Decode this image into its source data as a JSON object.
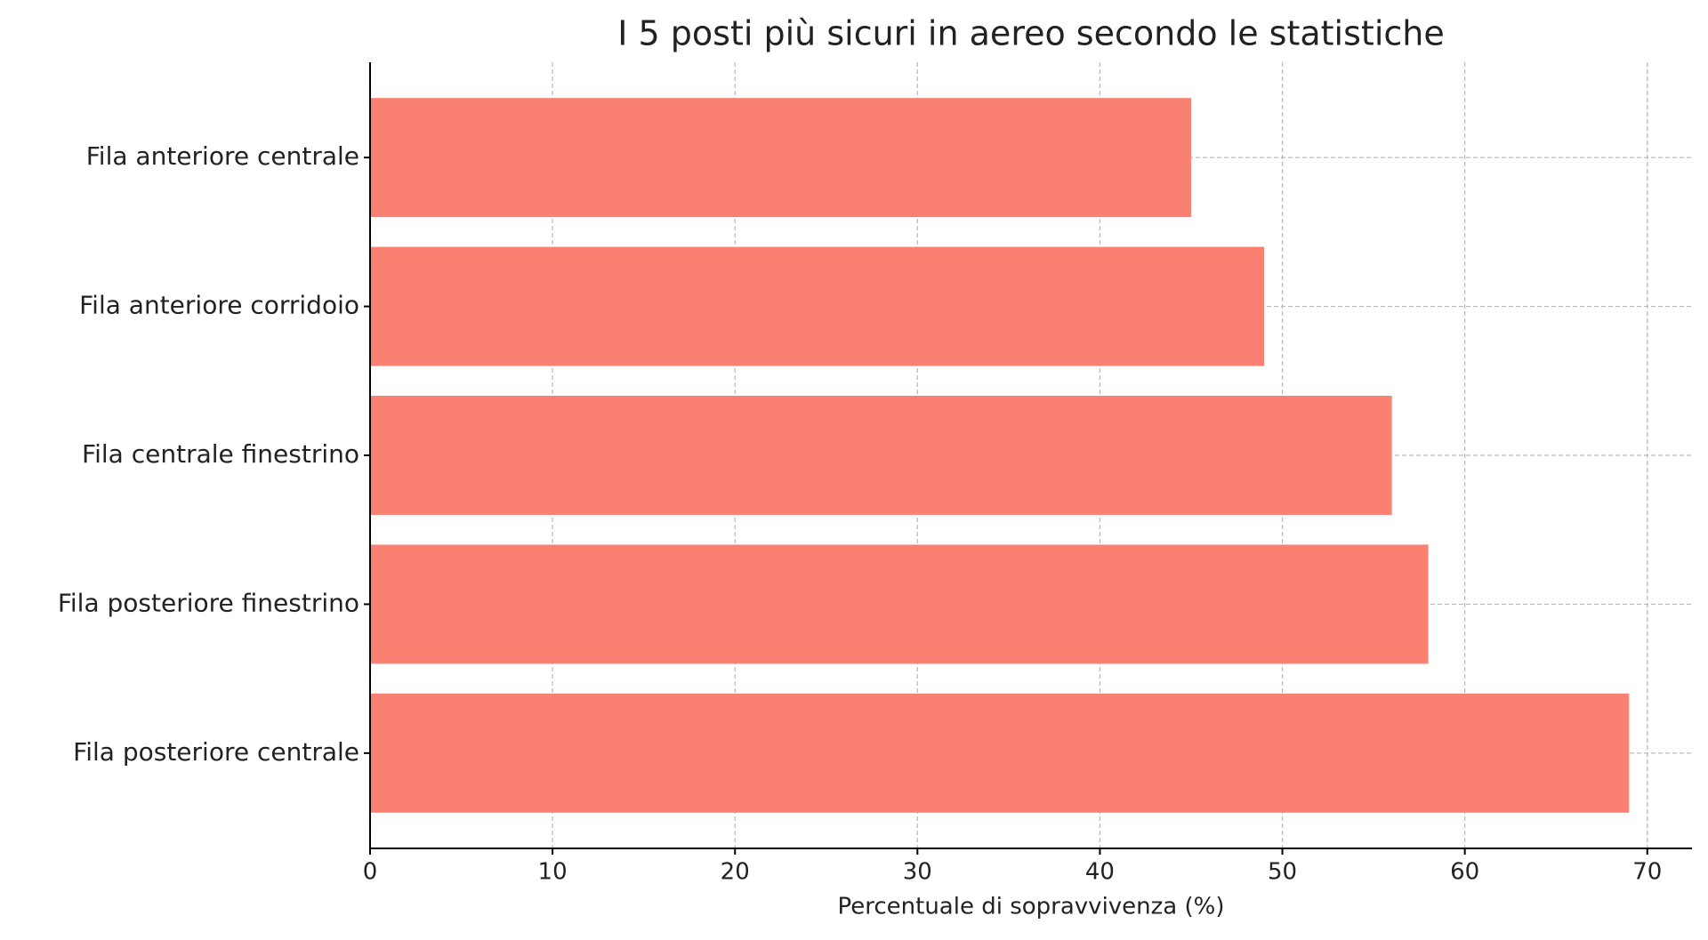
{
  "chart_data": {
    "type": "barh",
    "title": "I 5 posti più sicuri in aereo secondo le statistiche",
    "xlabel": "Percentuale di sopravvivenza (%)",
    "categories": [
      "Fila posteriore centrale",
      "Fila posteriore finestrino",
      "Fila centrale finestrino",
      "Fila anteriore corridoio",
      "Fila anteriore centrale"
    ],
    "values": [
      69,
      58,
      56,
      49,
      45
    ],
    "color": "#fa8072",
    "xlim": [
      0,
      72.45
    ],
    "xticks": [
      0,
      10,
      20,
      30,
      40,
      50,
      60,
      70
    ],
    "grid": true
  }
}
